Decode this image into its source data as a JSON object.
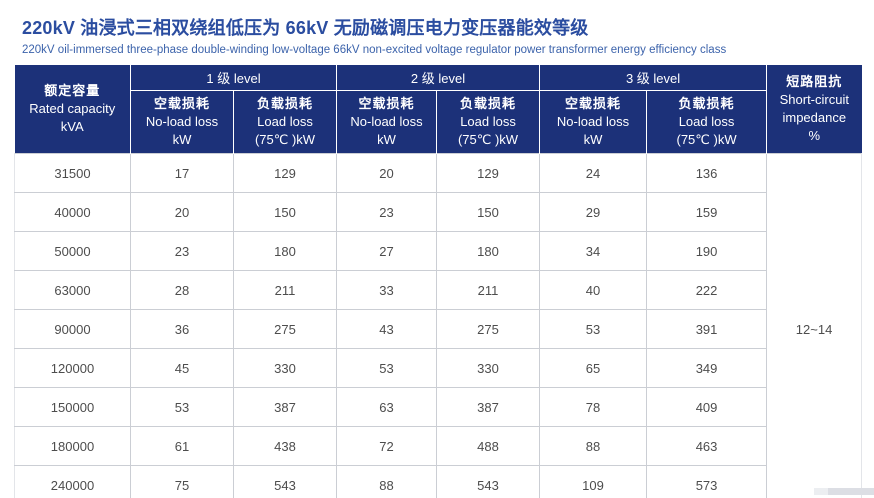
{
  "header": {
    "title_zh": "220kV 油浸式三相双绕组低压为 66kV 无励磁调压电力变压器能效等级",
    "title_en": "220kV oil-immersed three-phase double-winding low-voltage 66kV non-excited voltage regulator power transformer energy efficiency class"
  },
  "table": {
    "rated_capacity_header": {
      "zh": "额定容量",
      "en": "Rated capacity",
      "unit": "kVA"
    },
    "levels": [
      {
        "label": "1 级 level"
      },
      {
        "label": "2 级 level"
      },
      {
        "label": "3 级 level"
      }
    ],
    "no_load_header": {
      "zh": "空载损耗",
      "en": "No-load loss",
      "unit": "kW"
    },
    "load_header": {
      "zh": "负载损耗",
      "en": "Load loss",
      "unit": "(75℃ )kW"
    },
    "short_circuit_header": {
      "zh": "短路阻抗",
      "en_line1": "Short-circuit",
      "en_line2": "impedance",
      "unit": "%"
    },
    "rows": [
      {
        "capacity": "31500",
        "values": [
          "17",
          "129",
          "20",
          "129",
          "24",
          "136"
        ]
      },
      {
        "capacity": "40000",
        "values": [
          "20",
          "150",
          "23",
          "150",
          "29",
          "159"
        ]
      },
      {
        "capacity": "50000",
        "values": [
          "23",
          "180",
          "27",
          "180",
          "34",
          "190"
        ]
      },
      {
        "capacity": "63000",
        "values": [
          "28",
          "211",
          "33",
          "211",
          "40",
          "222"
        ]
      },
      {
        "capacity": "90000",
        "values": [
          "36",
          "275",
          "43",
          "275",
          "53",
          "391"
        ]
      },
      {
        "capacity": "120000",
        "values": [
          "45",
          "330",
          "53",
          "330",
          "65",
          "349"
        ]
      },
      {
        "capacity": "150000",
        "values": [
          "53",
          "387",
          "63",
          "387",
          "78",
          "409"
        ]
      },
      {
        "capacity": "180000",
        "values": [
          "61",
          "438",
          "72",
          "488",
          "88",
          "463"
        ]
      },
      {
        "capacity": "240000",
        "values": [
          "75",
          "543",
          "88",
          "543",
          "109",
          "573"
        ]
      }
    ],
    "short_circuit_value": "12~14"
  },
  "colors": {
    "header_background": "#1c3179",
    "header_text": "#ffffff",
    "title_blue": "#2b4da0",
    "subtitle_blue": "#3c63ab",
    "body_text": "#4d4d4d",
    "grid_border": "#cbced4"
  }
}
